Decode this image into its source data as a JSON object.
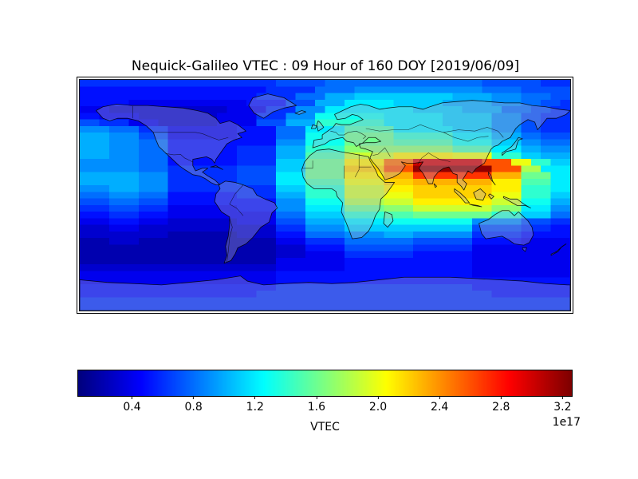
{
  "figure": {
    "background": "#ffffff"
  },
  "chart_data": {
    "type": "heatmap",
    "title": "Nequick-Galileo VTEC : 09 Hour of 160 DOY [2019/06/09]",
    "model": "Nequick-Galileo",
    "hour": "09",
    "doy": "160",
    "date": "2019/06/09",
    "projection": "equirectangular world map, lon -180..180, lat -90..90",
    "colormap": "jet",
    "colorbar": {
      "label": "VTEC",
      "offset_text": "1e17",
      "ticks": [
        0.4,
        0.8,
        1.2,
        1.6,
        2.0,
        2.4,
        2.8,
        3.2
      ],
      "tick_labels": [
        "0.4",
        "0.8",
        "1.2",
        "1.6",
        "2.0",
        "2.4",
        "2.8",
        "3.2"
      ],
      "vmin": 0.05,
      "vmax": 3.26,
      "orientation": "horizontal",
      "min_color": "#000080",
      "max_color": "#8b0000"
    },
    "grid": {
      "cols": 50,
      "rows": 35,
      "lon_range": [
        -180,
        180
      ],
      "lat_range": [
        90,
        -90
      ],
      "value_step_1e17": 0.1,
      "level_chars": "0123456789abcdefghijklmnopqrstuvw",
      "encoding": "run-length rows, top to bottom; each token char*count; value = charIndex * 0.1 (x1e17)",
      "rows_rle": [
        "6*20 7*5 8*16 7*6 6*3",
        "5*19 6*5 8*4 9*13 8*4 7*5",
        "5*18 6*4 8*3 a*3 b*10 a*4 9*3 8*3 7*2",
        "5*5 4*12 5*4 7*3 a*3 c*5 b*5 a*5 9*3 8*2 7*2 6*1",
        "4*3 3*12 4*4 6*3 9*3 c*9 b*5 a*4 8*3 7*2 6*2",
        "5*2 4*4 3*8 4*4 6*3 9*3 d*7 c*6 b*5 9*3 7*2 6*3",
        "7*2 6*3 4*3 3*6 4*4 7*3 a*3 e*7 c*6 b*5 9*3 7*2 6*3",
        "9*3 8*3 6*3 4*7 5*4 8*3 c*4 f*5 c*6 b*4 9*3 7*2 6*3",
        "a*3 9*3 7*3 4*7 5*4 8*3 d*4 g*5 e*6 c*4 a*3 8*2 7*3",
        "a*3 9*3 8*3 5*11 9*3 d*4 g*5 f*6 d*4 b*3 9*2 8*3",
        "a*3 9*3 8*3 5*7 6*4 a*3 e*4 h*11 f*4 c*3 a*2 9*3",
        "a*3 9*3 8*3 5*7 6*4 a*3 f*4 j*5 l*6 k*4 e*3 b*2 a*3",
        "9*6 8*3 5*7 6*4 b*3 g*4 l*4 p*3 u*7 q*3 k*2 e*2 b*2",
        "9*6 8*3 6*7 7*4 b*3 g*4 m*4 q*3 w*8 q*3 i*2 c*3",
        "a*6 9*3 6*7 7*4 c*3 g*4 l*4 n*3 r*8 n*3 g*3 c*2",
        "a*6 9*3 6*7 7*4 c*3 f*4 k*4 m*3 n*8 l*3 f*3 c*2",
        "9*3 a*3 9*3 6*11 b*3 e*4 j*4 l*3 m*8 l*3 e*3 c*2",
        "8*3 9*3 8*3 5*7 6*4 a*3 e*4 j*4 k*3 m*8 k*3 e*3 b*2",
        "7*3 8*3 7*3 5*11 9*3 d*4 i*4 j*3 l*8 j*3 d*3 a*2",
        "6*3 7*3 6*3 4*7 5*4 9*3 c*4 g*4 h*3 j*8 h*3 c*3 9*2",
        "5*3 6*3 5*3 4*11 8*3 b*4 e*4 f*3 g*8 e*3 b*3 8*2",
        "4*3 5*3 4*3 3*7 4*4 7*3 a*4 c*4 d*9 9*5 7*3 6*2",
        "3*3 4*3 3*14 6*3 9*4 b*13 7*5 6*3 5*2",
        "3*9 2*7 3*4 5*3 8*4 9*4 a*3 9*6 6*5 5*5",
        "2*3 3*3 2*14 4*3 6*4 8*7 7*6 5*5 4*5",
        "2*20 3*3 5*4 7*7 6*6 4*10",
        "2*20 3*3 4*4 6*7 5*6 4*10",
        "2*20 4*7 5*13 4*10",
        "3*20 4*7 5*13 4*10",
        "4*20 5*20 4*10",
        "4*20 5*30",
        "5*20 6*20 5*10",
        "5*18 6*24 5*8",
        "6*50",
        "6*50"
      ]
    }
  }
}
